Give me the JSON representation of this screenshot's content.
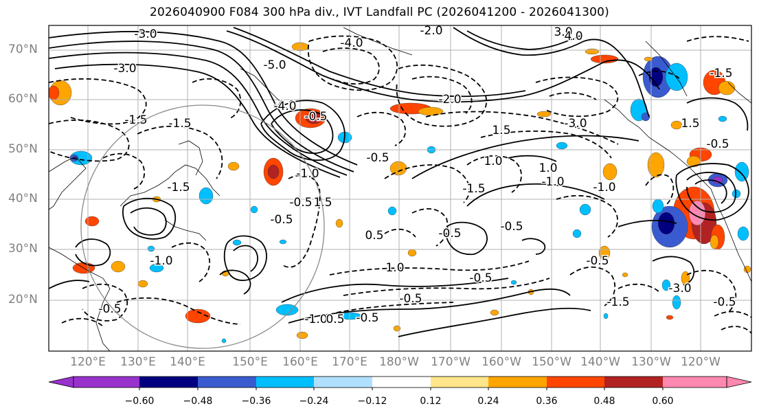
{
  "title": "2026040900 F084 300 hPa div., IVT Landfall PC (2026041200 - 2026041300)",
  "lat_labels": [
    "70°N",
    "60°N",
    "50°N",
    "40°N",
    "30°N",
    "20°N"
  ],
  "lon_labels": [
    "120°E",
    "130°E",
    "140°E",
    "150°E",
    "160°E",
    "170°E",
    "180°W",
    "170°W",
    "160°W",
    "150°W",
    "140°W",
    "130°W",
    "120°W"
  ],
  "colorbar": {
    "colors": [
      "#9932cc",
      "#000080",
      "#3a5bd0",
      "#00bfff",
      "#b0e0ff",
      "#ffffff",
      "#ffe68a",
      "#ffa500",
      "#ff4500",
      "#b22222",
      "#ff88b0"
    ],
    "tick_labels": [
      "−0.60",
      "−0.48",
      "−0.36",
      "−0.24",
      "−0.12",
      "0.12",
      "0.24",
      "0.36",
      "0.48",
      "0.60"
    ]
  },
  "contour_labels": [
    "-3.0",
    "-4.0",
    "-3.0",
    "-2.0",
    "3.0",
    "-1.5",
    "-1.5",
    "-4.0",
    "-2.0",
    "-1.5",
    "-1.0",
    "-3.0",
    "1.0",
    "-1.5",
    "-1.0",
    "-0.5",
    "-0.5",
    "1.5",
    "-0.5",
    "1.0",
    "-0.5",
    "1.5",
    "-1.0",
    "-0.5",
    "-0.5",
    "-0.5",
    "-1.0",
    "-0.5",
    "-1.0",
    "-1.5",
    "-0.5",
    "-0.5",
    "1.0",
    "-0.5",
    "-1.5",
    "0.5",
    "-0.5",
    "0.5",
    "-3.0",
    "-0.5",
    "1.5",
    "4.0",
    "-4.0",
    "-5.0"
  ]
}
